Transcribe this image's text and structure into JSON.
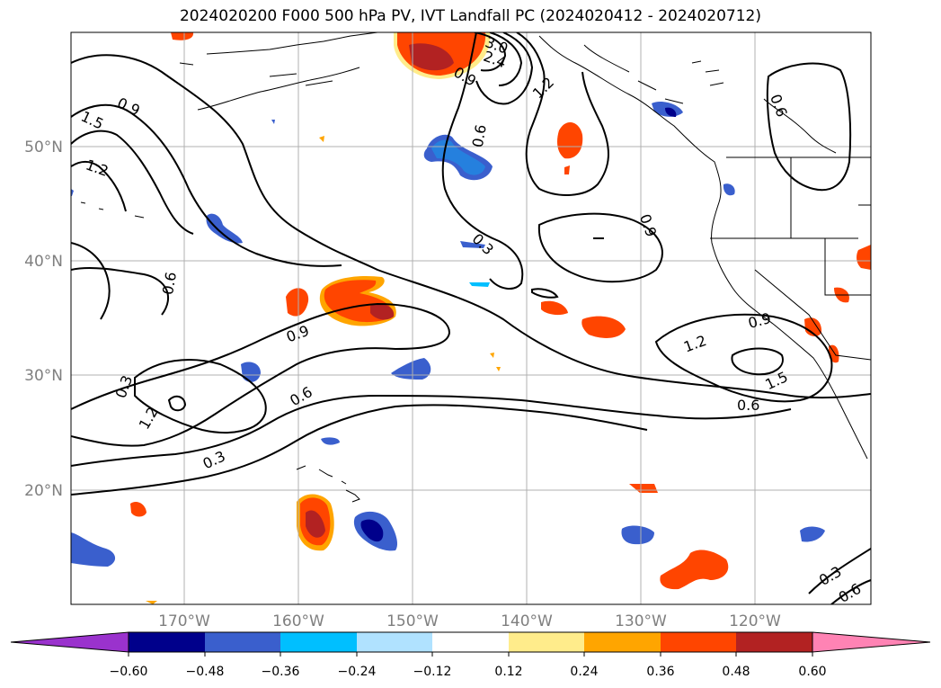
{
  "title": "2024020200 F000 500 hPa PV, IVT Landfall PC (2024020412 - 2024020712)",
  "map": {
    "lat_labels": [
      "50°N",
      "40°N",
      "30°N",
      "20°N"
    ],
    "lon_labels": [
      "170°W",
      "160°W",
      "150°W",
      "140°W",
      "130°W",
      "120°W"
    ],
    "gridline_color": "#b0b0b0",
    "contour_color": "#000000",
    "contour_labels": [
      "0.9",
      "1.5",
      "1.2",
      "0.6",
      "0.3",
      "0.9",
      "1.2",
      "0.3",
      "0.6",
      "0.9",
      "0.6",
      "0.9",
      "0.3",
      "0.9",
      "1.2",
      "1.5",
      "0.6",
      "0.3",
      "0.6",
      "1.2",
      "2.4",
      "3.0"
    ]
  },
  "colorbar": {
    "ticks": [
      "−0.60",
      "−0.48",
      "−0.36",
      "−0.24",
      "−0.12",
      "0.12",
      "0.24",
      "0.36",
      "0.48",
      "0.60"
    ],
    "colors": [
      "#9a32cd",
      "#00008b",
      "#3a5fcd",
      "#00bfff",
      "#b0e2ff",
      "#ffffff",
      "#ffec8b",
      "#ffa500",
      "#ff4500",
      "#b22222",
      "#ff83b4"
    ]
  }
}
